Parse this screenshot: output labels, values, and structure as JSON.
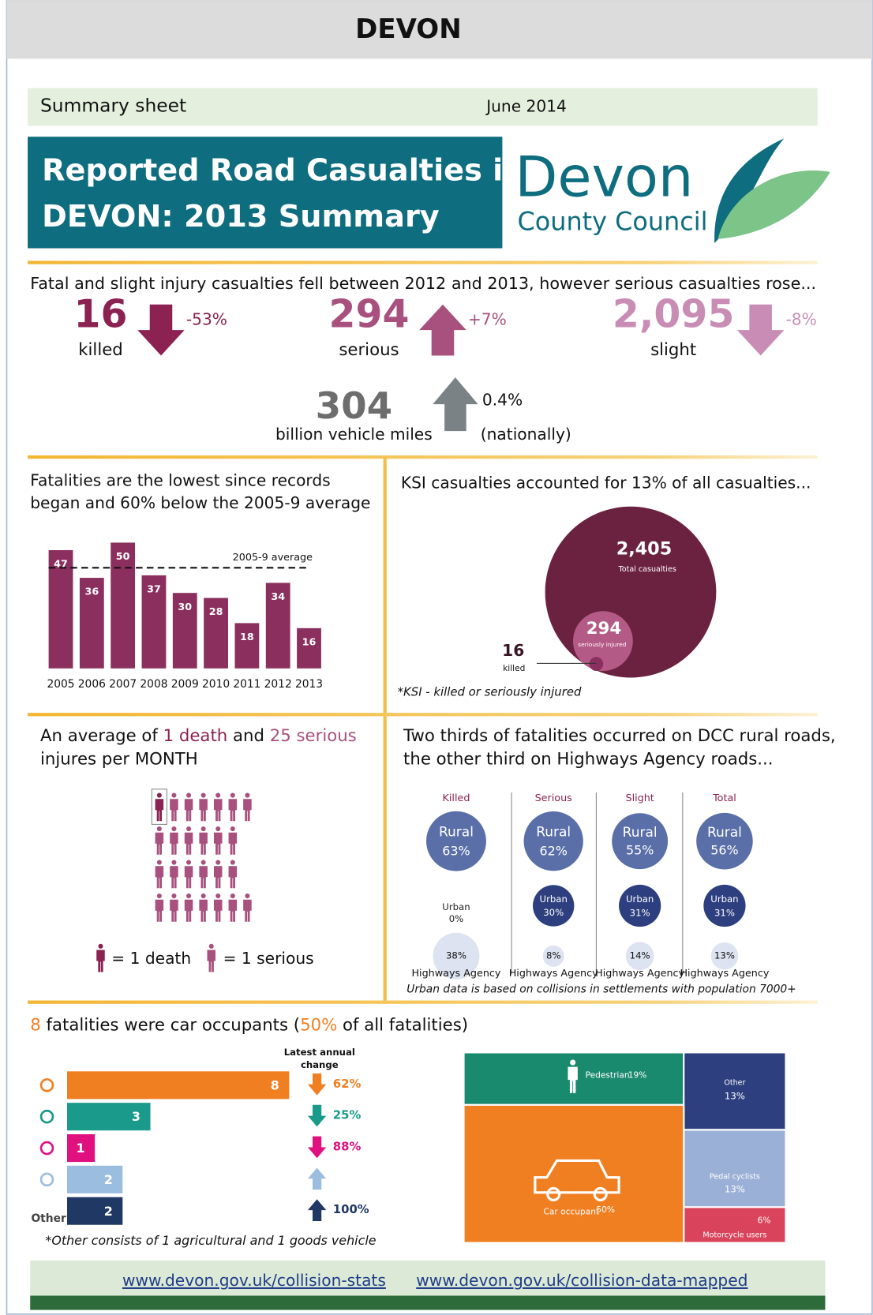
{
  "header": {
    "title": "DEVON"
  },
  "summary": {
    "label": "Summary sheet",
    "date": "June 2014"
  },
  "banner": {
    "lines": [
      "Reported Road Casualties in",
      "DEVON: 2013 Summary"
    ]
  },
  "logo": {
    "name": "Devon",
    "subtitle": "County Council"
  },
  "headline": {
    "text": "Fatal and slight injury casualties fell between 2012 and 2013, however serious casualties rose...",
    "stats": [
      {
        "value": "16",
        "label": "killed",
        "change": "-53%",
        "direction": "down",
        "color": "#8b2252"
      },
      {
        "value": "294",
        "label": "serious",
        "change": "+7%",
        "direction": "up",
        "color": "#a8507e"
      },
      {
        "value": "2,095",
        "label": "slight",
        "change": "-8%",
        "direction": "down",
        "color": "#c98db5"
      }
    ],
    "traffic": {
      "value": "304",
      "label": "billion vehicle miles",
      "change": "0.4%",
      "note": "(nationally)",
      "direction": "up",
      "color": "#7b8286"
    }
  },
  "monthly": {
    "line1": [
      "An average of ",
      "1 death",
      " and ",
      "25 serious"
    ],
    "line2": "injures per MONTH",
    "icons": {
      "death": 1,
      "serious": 25
    },
    "legend": [
      "= 1 death",
      "= 1 serious"
    ],
    "colors": {
      "death": "#8b2252",
      "serious": "#a8507e"
    }
  },
  "chart_data": [
    {
      "type": "bar",
      "title": [
        "Fatalities are the lowest since records",
        "began and 60% below the 2005-9 average"
      ],
      "categories": [
        "2005",
        "2006",
        "2007",
        "2008",
        "2009",
        "2010",
        "2011",
        "2012",
        "2013"
      ],
      "values": [
        47,
        36,
        50,
        37,
        30,
        28,
        18,
        34,
        16
      ],
      "color": "#8b2f5e",
      "reference": {
        "label": "2005-9 average",
        "value": 40
      }
    },
    {
      "type": "bubble",
      "title": "KSI casualties accounted for 13% of all casualties...",
      "values": [
        2405,
        294,
        16
      ],
      "value_labels": [
        "2,405",
        "294",
        "16"
      ],
      "labels": [
        "Total casualties",
        "seriously injured",
        "killed"
      ],
      "colors": [
        "#6b2140",
        "#b45a86",
        "#8b2f5e"
      ],
      "note": "*KSI - killed or seriously injured"
    },
    {
      "type": "bubble-grid",
      "title": [
        "Two thirds of fatalities occurred on DCC rural roads,",
        "the other third on Highways Agency roads..."
      ],
      "categories": [
        "Killed",
        "Serious",
        "Slight",
        "Total"
      ],
      "series": [
        {
          "name": "Rural",
          "color": "#5a6ea8",
          "values": [
            63,
            62,
            55,
            56
          ],
          "value_labels": [
            "63%",
            "62%",
            "55%",
            "56%"
          ]
        },
        {
          "name": "Urban",
          "color": "#2e3f80",
          "values": [
            0,
            30,
            31,
            31
          ],
          "value_labels": [
            "0%",
            "30%",
            "31%",
            "31%"
          ]
        },
        {
          "name": "Highways Agency",
          "color": "#dde3f0",
          "values": [
            38,
            8,
            14,
            13
          ],
          "value_labels": [
            "38%",
            "8%",
            "14%",
            "13%"
          ]
        }
      ],
      "note": "Urban data is based on collisions in settlements with population 7000+"
    },
    {
      "type": "hbar",
      "title": [
        "8",
        " fatalities were car occupants (",
        "50%",
        " of all fatalities)"
      ],
      "highlight": "#f07f22",
      "categories": [
        null,
        null,
        null,
        null,
        "Other"
      ],
      "values": [
        8,
        3,
        1,
        2,
        2
      ],
      "colors": [
        "#f07f22",
        "#1a9a8a",
        "#e0117f",
        "#9bbde0",
        "#1f3864"
      ],
      "change_title": [
        "Latest annual",
        "change"
      ],
      "changes": [
        62,
        25,
        88,
        null,
        100
      ],
      "change_labels": [
        "62%",
        "25%",
        "88%",
        null,
        "100%"
      ],
      "change_directions": [
        "down",
        "down",
        "down",
        "up",
        "up"
      ],
      "note": "*Other consists of 1 agricultural and 1 goods vehicle"
    },
    {
      "type": "treemap",
      "categories": [
        "Pedestrian",
        "Other",
        "Pedal cyclists",
        "Motorcycle users",
        "Car occupant"
      ],
      "values": [
        19,
        13,
        13,
        6,
        50
      ],
      "value_labels": [
        "19%",
        "13%",
        "13%",
        "6%",
        "50%"
      ],
      "colors": [
        "#1a8a6e",
        "#2e3f80",
        "#9bb0d6",
        "#d9445c",
        "#f07f22"
      ]
    }
  ],
  "footer": {
    "links": [
      "www.devon.gov.uk/collision-stats",
      "www.devon.gov.uk/collision-data-mapped"
    ]
  }
}
